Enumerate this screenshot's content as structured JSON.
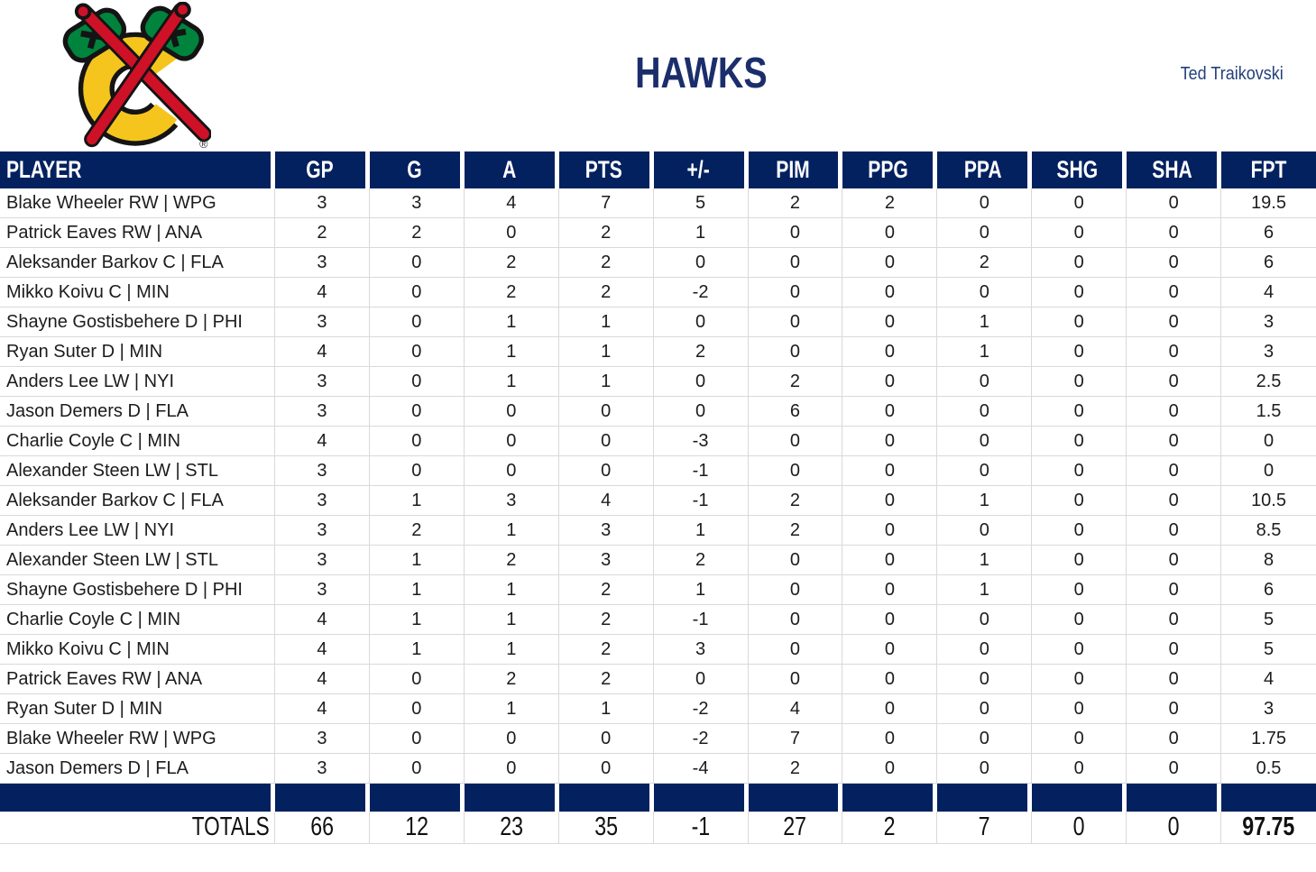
{
  "page": {
    "team_title": "HAWKS",
    "manager_name": "Ted Traikovski",
    "registered_mark": "®"
  },
  "colors": {
    "navy": "#03215F",
    "title_navy": "#1B2E6B",
    "manager_navy": "#24407C",
    "gridline": "#D9D9D9",
    "logo_yellow": "#F5C51D",
    "logo_red": "#CE1126",
    "logo_green": "#00843D"
  },
  "table": {
    "columns": [
      "PLAYER",
      "GP",
      "G",
      "A",
      "PTS",
      "+/-",
      "PIM",
      "PPG",
      "PPA",
      "SHG",
      "SHA",
      "FPT"
    ],
    "rows": [
      {
        "player": "Blake Wheeler RW | WPG",
        "values": [
          "3",
          "3",
          "4",
          "7",
          "5",
          "2",
          "2",
          "0",
          "0",
          "0",
          "19.5"
        ]
      },
      {
        "player": "Patrick Eaves RW | ANA",
        "values": [
          "2",
          "2",
          "0",
          "2",
          "1",
          "0",
          "0",
          "0",
          "0",
          "0",
          "6"
        ]
      },
      {
        "player": "Aleksander Barkov C | FLA",
        "values": [
          "3",
          "0",
          "2",
          "2",
          "0",
          "0",
          "0",
          "2",
          "0",
          "0",
          "6"
        ]
      },
      {
        "player": "Mikko Koivu C | MIN",
        "values": [
          "4",
          "0",
          "2",
          "2",
          "-2",
          "0",
          "0",
          "0",
          "0",
          "0",
          "4"
        ]
      },
      {
        "player": "Shayne Gostisbehere D | PHI",
        "values": [
          "3",
          "0",
          "1",
          "1",
          "0",
          "0",
          "0",
          "1",
          "0",
          "0",
          "3"
        ]
      },
      {
        "player": "Ryan Suter D | MIN",
        "values": [
          "4",
          "0",
          "1",
          "1",
          "2",
          "0",
          "0",
          "1",
          "0",
          "0",
          "3"
        ]
      },
      {
        "player": "Anders Lee LW | NYI",
        "values": [
          "3",
          "0",
          "1",
          "1",
          "0",
          "2",
          "0",
          "0",
          "0",
          "0",
          "2.5"
        ]
      },
      {
        "player": "Jason Demers D | FLA",
        "values": [
          "3",
          "0",
          "0",
          "0",
          "0",
          "6",
          "0",
          "0",
          "0",
          "0",
          "1.5"
        ]
      },
      {
        "player": "Charlie Coyle C | MIN",
        "values": [
          "4",
          "0",
          "0",
          "0",
          "-3",
          "0",
          "0",
          "0",
          "0",
          "0",
          "0"
        ]
      },
      {
        "player": "Alexander Steen LW | STL",
        "values": [
          "3",
          "0",
          "0",
          "0",
          "-1",
          "0",
          "0",
          "0",
          "0",
          "0",
          "0"
        ]
      },
      {
        "player": "Aleksander Barkov C | FLA",
        "values": [
          "3",
          "1",
          "3",
          "4",
          "-1",
          "2",
          "0",
          "1",
          "0",
          "0",
          "10.5"
        ]
      },
      {
        "player": "Anders Lee LW | NYI",
        "values": [
          "3",
          "2",
          "1",
          "3",
          "1",
          "2",
          "0",
          "0",
          "0",
          "0",
          "8.5"
        ]
      },
      {
        "player": "Alexander Steen LW | STL",
        "values": [
          "3",
          "1",
          "2",
          "3",
          "2",
          "0",
          "0",
          "1",
          "0",
          "0",
          "8"
        ]
      },
      {
        "player": "Shayne Gostisbehere D | PHI",
        "values": [
          "3",
          "1",
          "1",
          "2",
          "1",
          "0",
          "0",
          "1",
          "0",
          "0",
          "6"
        ]
      },
      {
        "player": "Charlie Coyle C | MIN",
        "values": [
          "4",
          "1",
          "1",
          "2",
          "-1",
          "0",
          "0",
          "0",
          "0",
          "0",
          "5"
        ]
      },
      {
        "player": "Mikko Koivu C | MIN",
        "values": [
          "4",
          "1",
          "1",
          "2",
          "3",
          "0",
          "0",
          "0",
          "0",
          "0",
          "5"
        ]
      },
      {
        "player": "Patrick Eaves RW | ANA",
        "values": [
          "4",
          "0",
          "2",
          "2",
          "0",
          "0",
          "0",
          "0",
          "0",
          "0",
          "4"
        ]
      },
      {
        "player": "Ryan Suter D | MIN",
        "values": [
          "4",
          "0",
          "1",
          "1",
          "-2",
          "4",
          "0",
          "0",
          "0",
          "0",
          "3"
        ]
      },
      {
        "player": "Blake Wheeler RW | WPG",
        "values": [
          "3",
          "0",
          "0",
          "0",
          "-2",
          "7",
          "0",
          "0",
          "0",
          "0",
          "1.75"
        ]
      },
      {
        "player": "Jason Demers D | FLA",
        "values": [
          "3",
          "0",
          "0",
          "0",
          "-4",
          "2",
          "0",
          "0",
          "0",
          "0",
          "0.5"
        ]
      }
    ],
    "totals_label": "TOTALS",
    "totals": [
      "66",
      "12",
      "23",
      "35",
      "-1",
      "27",
      "2",
      "7",
      "0",
      "0",
      "97.75"
    ]
  }
}
